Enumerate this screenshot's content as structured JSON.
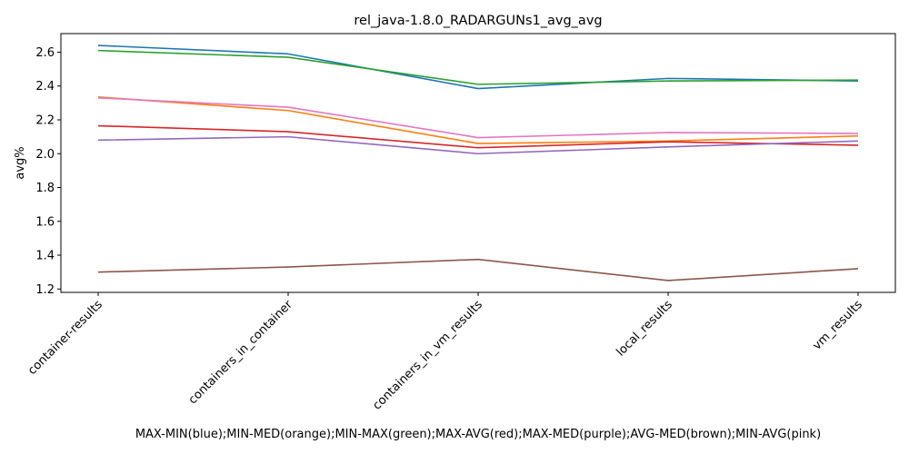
{
  "chart_data": {
    "type": "line",
    "title": "rel_java-1.8.0_RADARGUNs1_avg_avg",
    "ylabel": "avg%",
    "xlabel": "MAX-MIN(blue);MIN-MED(orange);MIN-MAX(green);MAX-AVG(red);MAX-MED(purple);AVG-MED(brown);MIN-AVG(pink)",
    "categories": [
      "container-results",
      "containers_in_container",
      "containers_in_vm_results",
      "local_results",
      "vm_results"
    ],
    "ylim": [
      1.18,
      2.71
    ],
    "yticks": [
      1.2,
      1.4,
      1.6,
      1.8,
      2.0,
      2.2,
      2.4,
      2.6
    ],
    "ytick_labels": [
      "1.2",
      "1.4",
      "1.6",
      "1.8",
      "2.0",
      "2.2",
      "2.4",
      "2.6"
    ],
    "grid": false,
    "series": [
      {
        "values": [
          2.64,
          2.59,
          2.385,
          2.445,
          2.43
        ],
        "color": "#1f77b4"
      },
      {
        "values": [
          2.335,
          2.255,
          2.06,
          2.075,
          2.105
        ],
        "color": "#ff7f0e"
      },
      {
        "values": [
          2.61,
          2.57,
          2.41,
          2.43,
          2.435
        ],
        "color": "#2ca02c"
      },
      {
        "values": [
          2.165,
          2.13,
          2.035,
          2.07,
          2.05
        ],
        "color": "#d62728"
      },
      {
        "values": [
          2.08,
          2.1,
          2.0,
          2.04,
          2.075
        ],
        "color": "#9467bd"
      },
      {
        "values": [
          1.3,
          1.33,
          1.375,
          1.25,
          1.32
        ],
        "color": "#8c564b"
      },
      {
        "values": [
          2.33,
          2.275,
          2.095,
          2.125,
          2.12
        ],
        "color": "#e377c2"
      }
    ]
  }
}
